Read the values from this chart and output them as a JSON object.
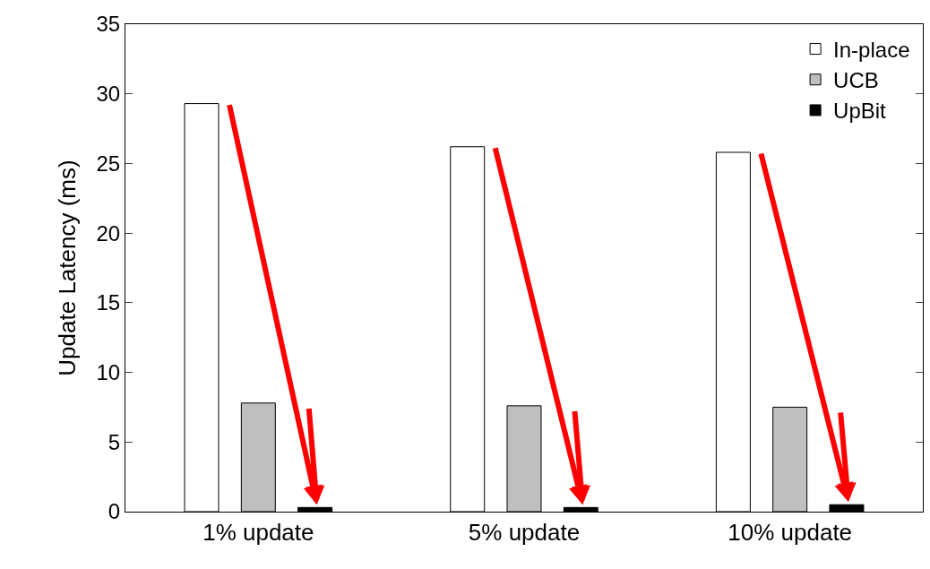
{
  "chart_data": {
    "type": "bar",
    "categories": [
      "1% update",
      "5% update",
      "10% update"
    ],
    "ylabel": "Update Latency (ms)",
    "series": [
      {
        "name": "In-place",
        "color": "#ffffff",
        "values": [
          29.3,
          26.2,
          25.8
        ]
      },
      {
        "name": "UCB",
        "color": "#bfbfbf",
        "values": [
          7.8,
          7.6,
          7.5
        ]
      },
      {
        "name": "UpBit",
        "color": "#000000",
        "values": [
          0.3,
          0.3,
          0.5
        ]
      }
    ],
    "ylim": [
      0,
      35
    ],
    "yticks": [
      0,
      5,
      10,
      15,
      20,
      25,
      30,
      35
    ],
    "legend": "top right"
  }
}
